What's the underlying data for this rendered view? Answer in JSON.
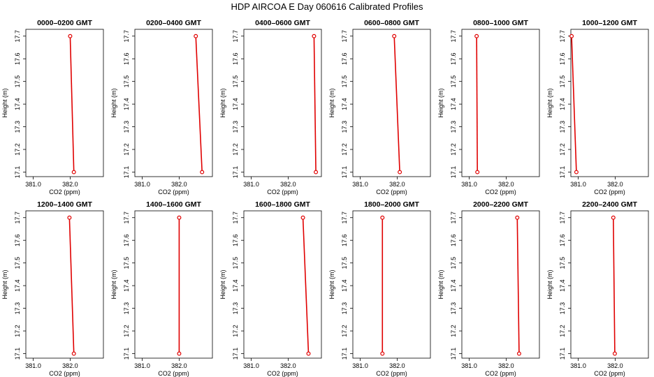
{
  "figure": {
    "title": "HDP  AIRCOA E  Day 060616  Calibrated Profiles",
    "colors": {
      "series": "#e00000",
      "axis": "#000000"
    }
  },
  "chart_data": {
    "type": "line",
    "title": "HDP  AIRCOA E  Day 060616  Calibrated Profiles",
    "xlabel": "CO2 (ppm)",
    "ylabel": "Height (m)",
    "xlim": [
      380.8,
      382.9
    ],
    "ylim": [
      17.08,
      17.73
    ],
    "x_ticks": [
      381.0,
      382.0
    ],
    "x_tick_labels": [
      "381.0",
      "382.0"
    ],
    "y_ticks": [
      17.1,
      17.2,
      17.3,
      17.4,
      17.5,
      17.6,
      17.7
    ],
    "y_tick_labels": [
      "17.1",
      "17.2",
      "17.3",
      "17.4",
      "17.5",
      "17.6",
      "17.7"
    ],
    "grid": false,
    "panels": [
      {
        "title": "0000–0200 GMT",
        "points": [
          {
            "x": 382.0,
            "y": 17.7
          },
          {
            "x": 382.1,
            "y": 17.1
          }
        ]
      },
      {
        "title": "0200–0400 GMT",
        "points": [
          {
            "x": 382.45,
            "y": 17.7
          },
          {
            "x": 382.62,
            "y": 17.1
          }
        ]
      },
      {
        "title": "0400–0600 GMT",
        "points": [
          {
            "x": 382.7,
            "y": 17.7
          },
          {
            "x": 382.75,
            "y": 17.1
          }
        ]
      },
      {
        "title": "0600–0800 GMT",
        "points": [
          {
            "x": 381.92,
            "y": 17.7
          },
          {
            "x": 382.07,
            "y": 17.1
          }
        ]
      },
      {
        "title": "0800–1000 GMT",
        "points": [
          {
            "x": 381.2,
            "y": 17.7
          },
          {
            "x": 381.22,
            "y": 17.1
          }
        ]
      },
      {
        "title": "1000–1200 GMT",
        "points": [
          {
            "x": 380.82,
            "y": 17.7
          },
          {
            "x": 380.95,
            "y": 17.1
          }
        ]
      },
      {
        "title": "1200–1400 GMT",
        "points": [
          {
            "x": 381.98,
            "y": 17.7
          },
          {
            "x": 382.1,
            "y": 17.1
          }
        ]
      },
      {
        "title": "1400–1600 GMT",
        "points": [
          {
            "x": 382.0,
            "y": 17.7
          },
          {
            "x": 382.0,
            "y": 17.1
          }
        ]
      },
      {
        "title": "1600–1800 GMT",
        "points": [
          {
            "x": 382.4,
            "y": 17.7
          },
          {
            "x": 382.55,
            "y": 17.1
          }
        ]
      },
      {
        "title": "1800–2000 GMT",
        "points": [
          {
            "x": 381.6,
            "y": 17.7
          },
          {
            "x": 381.6,
            "y": 17.1
          }
        ]
      },
      {
        "title": "2000–2200 GMT",
        "points": [
          {
            "x": 382.3,
            "y": 17.7
          },
          {
            "x": 382.35,
            "y": 17.1
          }
        ]
      },
      {
        "title": "2200–2400 GMT",
        "points": [
          {
            "x": 381.95,
            "y": 17.7
          },
          {
            "x": 381.99,
            "y": 17.1
          }
        ]
      }
    ]
  }
}
